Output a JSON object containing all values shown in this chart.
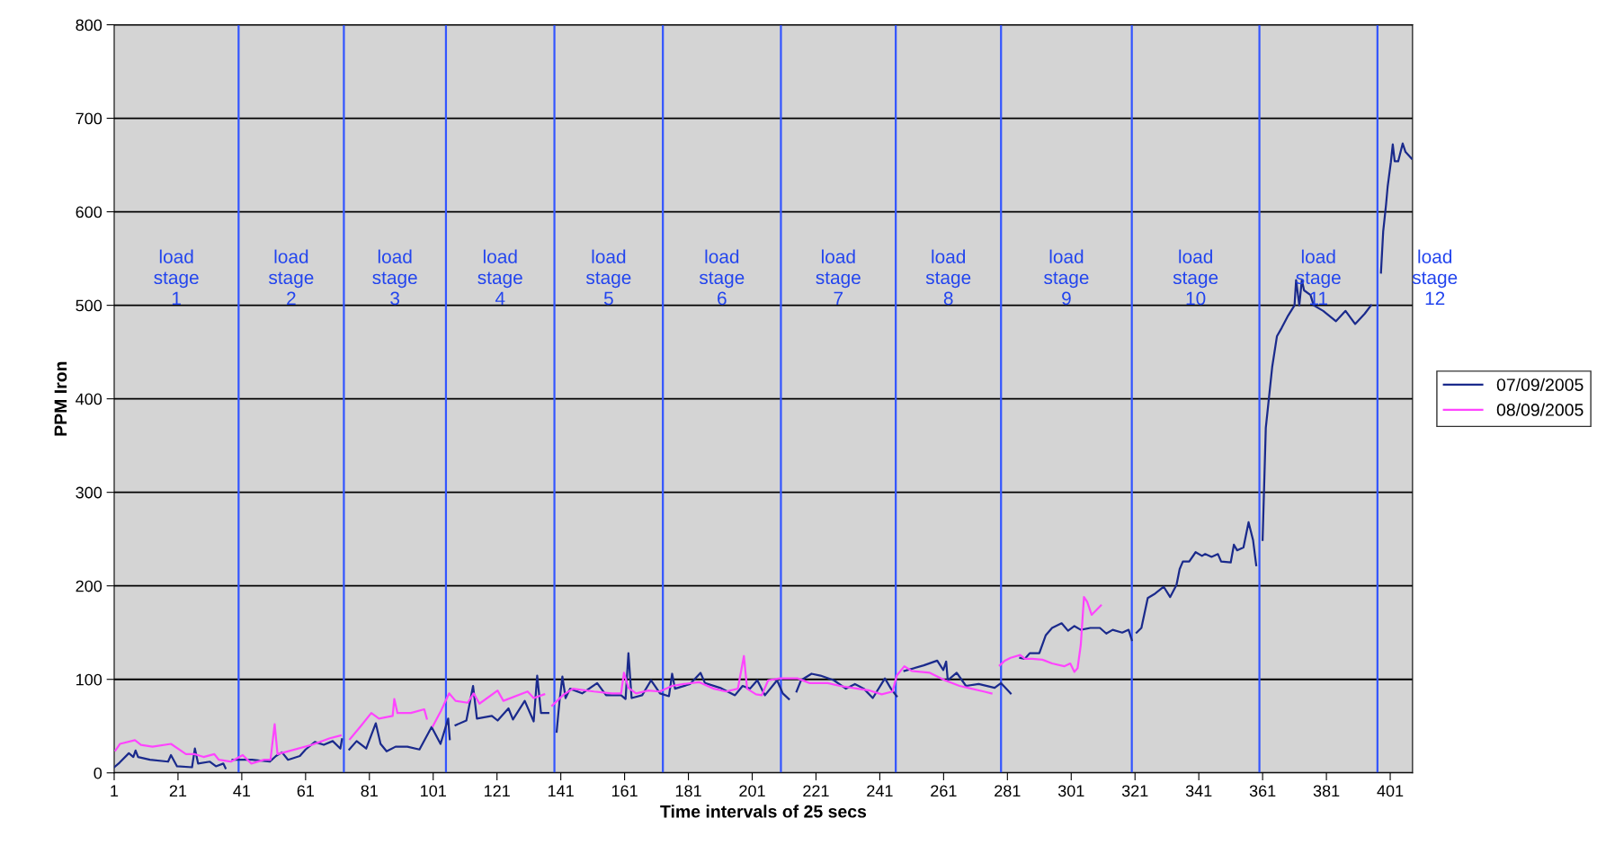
{
  "chart_data": {
    "type": "line",
    "xlabel": "Time intervals of 25 secs",
    "ylabel": "PPM Iron",
    "xlim": [
      1,
      408
    ],
    "xticks": [
      1,
      21,
      41,
      61,
      81,
      101,
      121,
      141,
      161,
      181,
      201,
      221,
      241,
      261,
      281,
      301,
      321,
      341,
      361,
      381,
      401
    ],
    "ylim": [
      0,
      800
    ],
    "yticks": [
      0,
      100,
      200,
      300,
      400,
      500,
      600,
      700,
      800
    ],
    "grid": "y",
    "legend": "right",
    "line_style": "solid",
    "marker": "none",
    "series": [
      {
        "name": "07/09/2005",
        "color": "#1a2a8c",
        "x": [
          1,
          2.7,
          5.6,
          7,
          7.7,
          8.5,
          12.2,
          17.9,
          18.8,
          20.7,
          25.4,
          26.3,
          27.3,
          31,
          32.9,
          35.2,
          35.9,
          37,
          38.1,
          44.2,
          49.8,
          51.7,
          53.6,
          55.5,
          59.2,
          61,
          63.9,
          66.7,
          69.5,
          71.9,
          72.4,
          73.5,
          74.7,
          77,
          80,
          83,
          84.5,
          86.4,
          89.2,
          92.9,
          96.7,
          100.5,
          103.3,
          105.7,
          106.2,
          107,
          108,
          111.4,
          113.5,
          114.7,
          119.4,
          121.2,
          124.6,
          126,
          129.7,
          132.5,
          133.6,
          134.8,
          137.1,
          138.3,
          139.7,
          140.6,
          141.5,
          142.5,
          143.9,
          147.7,
          152.4,
          155.2,
          159.9,
          161.3,
          162.2,
          163.2,
          166.5,
          169.3,
          172.1,
          174.9,
          175.9,
          176.8,
          181.5,
          184.8,
          186.2,
          190.9,
          195.6,
          198,
          200.3,
          202.6,
          205,
          208.8,
          210.6,
          212.5,
          213.7,
          214.9,
          216.3,
          219.6,
          222.4,
          226.6,
          230.4,
          233.2,
          236,
          238.8,
          242.6,
          244.5,
          246.3,
          247.5,
          248.7,
          254.8,
          259,
          260.9,
          261.8,
          262.3,
          265.1,
          268,
          272,
          277,
          279,
          282,
          283.5,
          285,
          286.5,
          288,
          291,
          293,
          295,
          298,
          300,
          302,
          304,
          307,
          310,
          312,
          314,
          317,
          319,
          320,
          320.8,
          321.5,
          323,
          325,
          327,
          330,
          332,
          334,
          335,
          336,
          338,
          340,
          342,
          343,
          345,
          347,
          348,
          351,
          352,
          353,
          355,
          356.6,
          358,
          359,
          360,
          361,
          362,
          364,
          365.5,
          367,
          369,
          371,
          371.5,
          372.5,
          373.3,
          374,
          376,
          377,
          380,
          384,
          387,
          390,
          393,
          395,
          396.5,
          398.1,
          398.8,
          399.7,
          400.2,
          401.2,
          401.8,
          402.4,
          403.5,
          404.9,
          405.8,
          407.7
        ],
        "values": [
          6,
          11,
          21,
          17,
          24,
          17,
          14,
          12,
          19,
          7,
          6,
          26,
          10,
          12,
          7,
          10,
          5,
          null,
          14,
          14,
          12,
          18,
          22,
          14,
          18,
          25,
          33,
          30,
          34,
          26,
          36,
          null,
          25,
          34,
          26,
          53,
          31,
          23,
          28,
          28,
          25,
          49,
          31,
          58,
          36,
          null,
          51,
          56,
          93,
          58,
          61,
          56,
          69,
          57,
          77,
          55,
          104,
          64,
          64,
          null,
          44,
          77,
          103,
          80,
          90,
          85,
          96,
          83,
          83,
          79,
          128,
          80,
          83,
          99,
          85,
          82,
          106,
          90,
          95,
          107,
          96,
          91,
          83,
          93,
          90,
          99,
          83,
          99,
          85,
          79,
          null,
          87,
          99,
          106,
          104,
          99,
          90,
          95,
          90,
          80,
          101,
          90,
          82,
          null,
          109,
          115,
          120,
          110,
          119,
          99,
          107,
          93,
          95,
          91,
          96,
          85,
          null,
          123,
          122,
          128,
          128,
          147,
          155,
          160,
          152,
          157,
          153,
          155,
          155,
          149,
          153,
          150,
          153,
          142,
          null,
          150,
          155,
          187,
          191,
          199,
          188,
          201,
          218,
          226,
          226,
          236,
          232,
          234,
          231,
          234,
          226,
          225,
          244,
          238,
          241,
          268,
          249,
          222,
          null,
          249,
          369,
          434,
          467,
          476,
          489,
          500,
          527,
          500,
          527,
          516,
          511,
          500,
          494,
          483,
          494,
          480,
          491,
          500,
          null,
          535,
          579,
          608,
          627,
          653,
          672,
          654,
          654,
          673,
          664,
          657
        ]
      },
      {
        "name": "08/09/2005",
        "color": "#ff44ff",
        "x": [
          1.4,
          2.8,
          7.5,
          9.4,
          13,
          18.8,
          23.5,
          26.3,
          29,
          32.4,
          33.8,
          37.6,
          41.3,
          44,
          48,
          50,
          51.3,
          52.2,
          55.4,
          63,
          68.6,
          72,
          73.5,
          74.9,
          78.3,
          81.6,
          84,
          88.3,
          88.8,
          89.8,
          94,
          98.2,
          99,
          100,
          100.9,
          103.4,
          106,
          108,
          111.8,
          113.7,
          115.5,
          121.2,
          123,
          130.6,
          132.5,
          135.8,
          137,
          138.3,
          142,
          144.8,
          151.4,
          157,
          159.9,
          160.8,
          162.2,
          164.6,
          168.3,
          172,
          175.9,
          179.6,
          184.3,
          189,
          192.8,
          196.5,
          198.4,
          199.4,
          202.2,
          204,
          206,
          209.7,
          215.3,
          219,
          224.7,
          228.5,
          234.1,
          237.9,
          241.6,
          245,
          246.3,
          248.7,
          251,
          256.7,
          261.4,
          266,
          269.8,
          273.6,
          276,
          277.5,
          278.6,
          280.2,
          282,
          285,
          286.5,
          288.8,
          292,
          295,
          298.8,
          300.7,
          302,
          303,
          304,
          305,
          306,
          307.4,
          310.3
        ],
        "values": [
          24,
          31,
          35,
          30,
          28,
          31,
          20,
          20,
          17,
          20,
          14,
          12,
          19,
          10,
          14,
          14,
          52,
          20,
          23,
          30,
          37,
          40,
          null,
          36,
          50,
          64,
          58,
          61,
          79,
          64,
          64,
          68,
          58,
          null,
          50,
          66,
          85,
          77,
          75,
          85,
          74,
          88,
          77,
          87,
          80,
          84,
          null,
          72,
          84,
          90,
          87,
          85,
          85,
          107,
          91,
          85,
          88,
          87,
          93,
          95,
          97,
          90,
          87,
          90,
          125,
          90,
          84,
          83,
          99,
          101,
          101,
          96,
          96,
          93,
          90,
          88,
          84,
          87,
          104,
          114,
          109,
          107,
          99,
          93,
          90,
          87,
          85,
          null,
          115,
          120,
          123,
          126,
          122,
          122,
          121,
          117,
          114,
          117,
          108,
          112,
          137,
          188,
          183,
          169,
          179
        ]
      }
    ],
    "ref_lines": [
      {
        "axis": "x",
        "value": 40,
        "color": "#3355ff"
      },
      {
        "axis": "x",
        "value": 73,
        "color": "#3355ff"
      },
      {
        "axis": "x",
        "value": 105,
        "color": "#3355ff"
      },
      {
        "axis": "x",
        "value": 139,
        "color": "#3355ff"
      },
      {
        "axis": "x",
        "value": 173,
        "color": "#3355ff"
      },
      {
        "axis": "x",
        "value": 210,
        "color": "#3355ff"
      },
      {
        "axis": "x",
        "value": 246,
        "color": "#3355ff"
      },
      {
        "axis": "x",
        "value": 279,
        "color": "#3355ff"
      },
      {
        "axis": "x",
        "value": 320,
        "color": "#3355ff"
      },
      {
        "axis": "x",
        "value": 360,
        "color": "#3355ff"
      },
      {
        "axis": "x",
        "value": 397,
        "color": "#3355ff"
      }
    ],
    "annotations": [
      "load\nstage\n1",
      "load\nstage\n2",
      "load\nstage\n3",
      "load\nstage\n4",
      "load\nstage\n5",
      "load\nstage\n6",
      "load\nstage\n7",
      "load\nstage\n8",
      "load\nstage\n9",
      "load\nstage\n10",
      "load\nstage\n11",
      "load\nstage\n12"
    ]
  }
}
